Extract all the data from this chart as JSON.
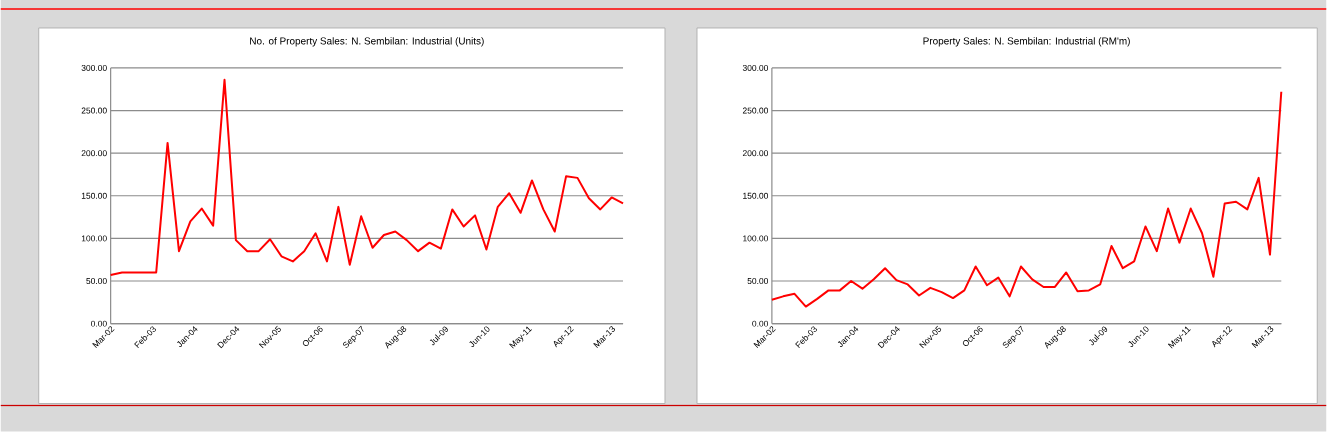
{
  "chart_data": [
    {
      "type": "line",
      "title": "No. of Property Sales: N. Sembilan: Industrial (Units)",
      "x": [
        "2002-03",
        "2002-06",
        "2002-09",
        "2002-12",
        "2003-03",
        "2003-06",
        "2003-09",
        "2003-12",
        "2004-03",
        "2004-06",
        "2004-09",
        "2004-12",
        "2005-03",
        "2005-06",
        "2005-09",
        "2005-12",
        "2006-03",
        "2006-06",
        "2006-09",
        "2006-12",
        "2007-03",
        "2007-06",
        "2007-09",
        "2007-12",
        "2008-03",
        "2008-06",
        "2008-09",
        "2008-12",
        "2009-03",
        "2009-06",
        "2009-09",
        "2009-12",
        "2010-03",
        "2010-06",
        "2010-09",
        "2010-12",
        "2011-03",
        "2011-06",
        "2011-09",
        "2011-12",
        "2012-03",
        "2012-06",
        "2012-09",
        "2012-12",
        "2013-03",
        "2013-06"
      ],
      "series": [
        {
          "color": "#ff0000",
          "values": [
            57,
            60,
            60,
            60,
            60,
            212,
            85,
            120,
            135,
            115,
            286,
            98,
            85,
            85,
            99,
            79,
            73,
            85,
            106,
            73,
            137,
            69,
            126,
            89,
            104,
            108,
            98,
            85,
            95,
            88,
            134,
            114,
            127,
            87,
            137,
            153,
            130,
            168,
            134,
            108,
            173,
            171,
            147,
            134,
            148,
            141
          ]
        }
      ],
      "xlim": [
        "2002-03",
        "2013-06"
      ],
      "xticks": [
        {
          "value": "2002-03",
          "label": "Mar-02"
        },
        {
          "value": "2003-02",
          "label": "Feb-03"
        },
        {
          "value": "2004-01",
          "label": "Jan-04"
        },
        {
          "value": "2004-12",
          "label": "Dec-04"
        },
        {
          "value": "2005-11",
          "label": "Nov-05"
        },
        {
          "value": "2006-10",
          "label": "Oct-06"
        },
        {
          "value": "2007-09",
          "label": "Sep-07"
        },
        {
          "value": "2008-08",
          "label": "Aug-08"
        },
        {
          "value": "2009-07",
          "label": "Jul-09"
        },
        {
          "value": "2010-06",
          "label": "Jun-10"
        },
        {
          "value": "2011-05",
          "label": "May-11"
        },
        {
          "value": "2012-04",
          "label": "Apr-12"
        },
        {
          "value": "2013-03",
          "label": "Mar-13"
        }
      ],
      "ylim": [
        0,
        300
      ],
      "yticks": [
        {
          "value": 0,
          "label": "0.00"
        },
        {
          "value": 50,
          "label": "50.00"
        },
        {
          "value": 100,
          "label": "100.00"
        },
        {
          "value": 150,
          "label": "150.00"
        },
        {
          "value": 200,
          "label": "200.00"
        },
        {
          "value": 250,
          "label": "250.00"
        },
        {
          "value": 300,
          "label": "300.00"
        }
      ],
      "grid": "y"
    },
    {
      "type": "line",
      "title": "Property Sales: N. Sembilan: Industrial (RM'm)",
      "x": [
        "2002-03",
        "2002-06",
        "2002-09",
        "2002-12",
        "2003-03",
        "2003-06",
        "2003-09",
        "2003-12",
        "2004-03",
        "2004-06",
        "2004-09",
        "2004-12",
        "2005-03",
        "2005-06",
        "2005-09",
        "2005-12",
        "2006-03",
        "2006-06",
        "2006-09",
        "2006-12",
        "2007-03",
        "2007-06",
        "2007-09",
        "2007-12",
        "2008-03",
        "2008-06",
        "2008-09",
        "2008-12",
        "2009-03",
        "2009-06",
        "2009-09",
        "2009-12",
        "2010-03",
        "2010-06",
        "2010-09",
        "2010-12",
        "2011-03",
        "2011-06",
        "2011-09",
        "2011-12",
        "2012-03",
        "2012-06",
        "2012-09",
        "2012-12",
        "2013-03",
        "2013-06"
      ],
      "series": [
        {
          "color": "#ff0000",
          "values": [
            28,
            32,
            35,
            20,
            29,
            39,
            39,
            50,
            41,
            52,
            65,
            51,
            46,
            33,
            42,
            37,
            30,
            39,
            67,
            45,
            54,
            32,
            67,
            52,
            43,
            43,
            60,
            38,
            39,
            46,
            91,
            65,
            73,
            114,
            85,
            135,
            95,
            135,
            106,
            55,
            141,
            143,
            134,
            171,
            81,
            272
          ]
        }
      ],
      "xlim": [
        "2002-03",
        "2013-06"
      ],
      "xticks": [
        {
          "value": "2002-03",
          "label": "Mar-02"
        },
        {
          "value": "2003-02",
          "label": "Feb-03"
        },
        {
          "value": "2004-01",
          "label": "Jan-04"
        },
        {
          "value": "2004-12",
          "label": "Dec-04"
        },
        {
          "value": "2005-11",
          "label": "Nov-05"
        },
        {
          "value": "2006-10",
          "label": "Oct-06"
        },
        {
          "value": "2007-09",
          "label": "Sep-07"
        },
        {
          "value": "2008-08",
          "label": "Aug-08"
        },
        {
          "value": "2009-07",
          "label": "Jul-09"
        },
        {
          "value": "2010-06",
          "label": "Jun-10"
        },
        {
          "value": "2011-05",
          "label": "May-11"
        },
        {
          "value": "2012-04",
          "label": "Apr-12"
        },
        {
          "value": "2013-03",
          "label": "Mar-13"
        }
      ],
      "ylim": [
        0,
        300
      ],
      "yticks": [
        {
          "value": 0,
          "label": "0.00"
        },
        {
          "value": 50,
          "label": "50.00"
        },
        {
          "value": 100,
          "label": "100.00"
        },
        {
          "value": 150,
          "label": "150.00"
        },
        {
          "value": 200,
          "label": "200.00"
        },
        {
          "value": 250,
          "label": "250.00"
        },
        {
          "value": 300,
          "label": "300.00"
        }
      ],
      "grid": "y"
    }
  ]
}
